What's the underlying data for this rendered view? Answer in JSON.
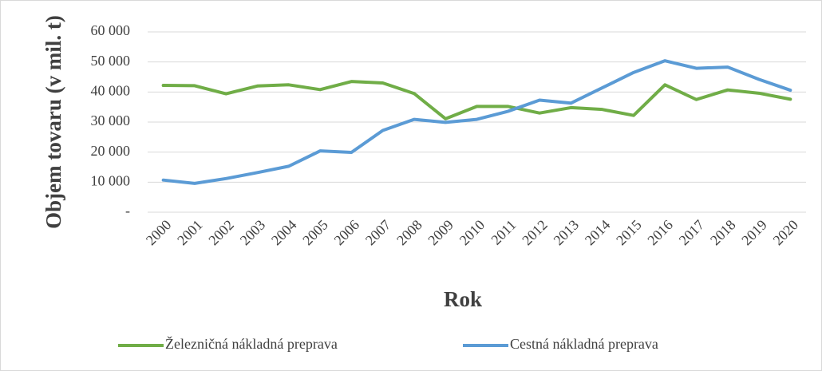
{
  "chart_data": {
    "type": "line",
    "y_axis_label": "Objem tovaru (v mil. t)",
    "x_axis_label": "Rok",
    "categories": [
      "2000",
      "2001",
      "2002",
      "2003",
      "2004",
      "2005",
      "2006",
      "2007",
      "2008",
      "2009",
      "2010",
      "2011",
      "2012",
      "2013",
      "2014",
      "2015",
      "2016",
      "2017",
      "2018",
      "2019",
      "2020"
    ],
    "series": [
      {
        "name": "Železničná nákladná preprava",
        "color": "#70ad47",
        "values": [
          42200,
          42100,
          39400,
          42000,
          42400,
          40800,
          43500,
          43000,
          39500,
          31100,
          35200,
          35200,
          33000,
          34800,
          34200,
          32200,
          42400,
          37500,
          40700,
          39600,
          37600
        ]
      },
      {
        "name": "Cestná nákladná preprava",
        "color": "#5b9bd5",
        "values": [
          10700,
          9600,
          11200,
          13200,
          15300,
          20400,
          19900,
          27200,
          30900,
          29900,
          30900,
          33600,
          37300,
          36300,
          41400,
          46500,
          50400,
          47900,
          48300,
          44200,
          40600
        ]
      }
    ],
    "ylim": [
      0,
      60000
    ],
    "yticks": [
      {
        "value": 0,
        "label": "-"
      },
      {
        "value": 10000,
        "label": "10 000"
      },
      {
        "value": 20000,
        "label": "20 000"
      },
      {
        "value": 30000,
        "label": "30 000"
      },
      {
        "value": 40000,
        "label": "40 000"
      },
      {
        "value": 50000,
        "label": "50 000"
      },
      {
        "value": 60000,
        "label": "60 000"
      }
    ],
    "grid": true,
    "legend": "bottom"
  }
}
